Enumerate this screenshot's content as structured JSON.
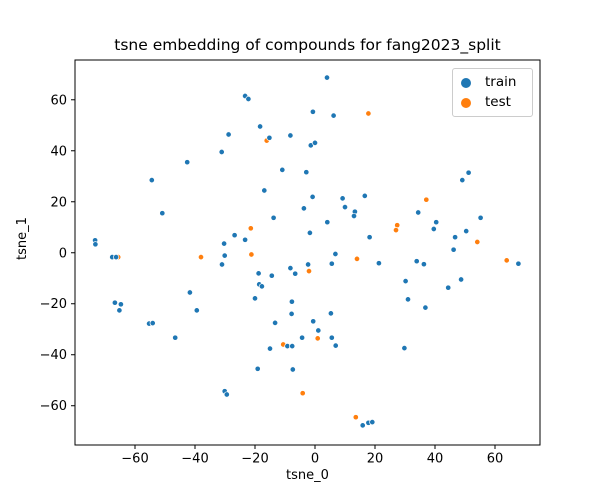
{
  "figure": {
    "title": "tsne embedding of compounds for fang2023_split",
    "xlabel": "tsne_0",
    "ylabel": "tsne_1"
  },
  "legend": {
    "items": [
      {
        "label": "train",
        "color": "#1f77b4"
      },
      {
        "label": "test",
        "color": "#ff7f0e"
      }
    ]
  },
  "chart_data": {
    "type": "scatter",
    "title": "tsne embedding of compounds for fang2023_split",
    "xlabel": "tsne_0",
    "ylabel": "tsne_1",
    "xlim": [
      -80,
      75
    ],
    "ylim": [
      -75.4,
      75.6
    ],
    "grid": false,
    "legend_position": "upper right",
    "x_tick_values": [
      -60,
      -40,
      -20,
      0,
      20,
      40,
      60
    ],
    "x_tick_labels": [
      "−60",
      "−40",
      "−20",
      "0",
      "20",
      "40",
      "60"
    ],
    "y_tick_values": [
      -60,
      -40,
      -20,
      0,
      20,
      40,
      60
    ],
    "y_tick_labels": [
      "−60",
      "−40",
      "−20",
      "0",
      "20",
      "40",
      "60"
    ],
    "marker": {
      "radius": 2.7,
      "edge_color": "#ffffff",
      "edge_width": 0.7
    },
    "series": [
      {
        "name": "train",
        "color": "#1f77b4",
        "points": [
          [
            -31.1,
            39.5
          ],
          [
            -42.6,
            35.5
          ],
          [
            -54.4,
            28.5
          ],
          [
            -28.8,
            46.4
          ],
          [
            4.0,
            68.7
          ],
          [
            -23.3,
            61.5
          ],
          [
            -22.2,
            60.3
          ],
          [
            -0.7,
            55.3
          ],
          [
            6.2,
            53.8
          ],
          [
            -18.3,
            49.5
          ],
          [
            -15.2,
            45.1
          ],
          [
            -8.2,
            46.0
          ],
          [
            -1.4,
            42.1
          ],
          [
            0.0,
            43.1
          ],
          [
            -10.9,
            32.5
          ],
          [
            -2.9,
            31.6
          ],
          [
            -16.9,
            24.4
          ],
          [
            -0.8,
            21.9
          ],
          [
            9.2,
            21.3
          ],
          [
            16.6,
            22.3
          ],
          [
            -3.7,
            17.4
          ],
          [
            10.0,
            17.9
          ],
          [
            13.3,
            16.1
          ],
          [
            13.0,
            14.4
          ],
          [
            -13.8,
            13.7
          ],
          [
            4.1,
            12.0
          ],
          [
            -26.8,
            6.9
          ],
          [
            -23.3,
            5.1
          ],
          [
            -1.7,
            7.8
          ],
          [
            18.2,
            6.1
          ],
          [
            6.8,
            -0.5
          ],
          [
            5.6,
            -4.3
          ],
          [
            21.3,
            -4.1
          ],
          [
            -2.3,
            -4.6
          ],
          [
            -8.2,
            -6.0
          ],
          [
            -6.6,
            -8.2
          ],
          [
            -18.8,
            -8.1
          ],
          [
            -14.4,
            -9.0
          ],
          [
            -18.6,
            -12.4
          ],
          [
            -17.7,
            -13.2
          ],
          [
            -20.0,
            -17.9
          ],
          [
            -7.7,
            -19.2
          ],
          [
            -7.8,
            -24.0
          ],
          [
            5.3,
            -23.8
          ],
          [
            -50.9,
            15.5
          ],
          [
            -73.3,
            4.9
          ],
          [
            -73.2,
            3.3
          ],
          [
            -67.6,
            -1.7
          ],
          [
            -66.3,
            -1.7
          ],
          [
            -30.3,
            3.6
          ],
          [
            -30.1,
            -1.1
          ],
          [
            -31.0,
            -4.6
          ],
          [
            -41.7,
            -15.6
          ],
          [
            -39.4,
            -22.6
          ],
          [
            -66.7,
            -19.6
          ],
          [
            -64.7,
            -20.2
          ],
          [
            -65.2,
            -22.6
          ],
          [
            51.2,
            31.4
          ],
          [
            49.1,
            28.5
          ],
          [
            34.4,
            15.8
          ],
          [
            40.4,
            12.0
          ],
          [
            39.6,
            9.3
          ],
          [
            55.2,
            13.7
          ],
          [
            50.4,
            8.5
          ],
          [
            46.7,
            6.1
          ],
          [
            46.2,
            1.2
          ],
          [
            33.9,
            -3.3
          ],
          [
            36.3,
            -4.5
          ],
          [
            67.8,
            -4.3
          ],
          [
            30.2,
            -11.1
          ],
          [
            48.7,
            -10.5
          ],
          [
            44.4,
            -13.7
          ],
          [
            31.0,
            -18.3
          ],
          [
            36.8,
            -21.5
          ],
          [
            -55.3,
            -27.8
          ],
          [
            -54.1,
            -27.6
          ],
          [
            -46.6,
            -33.3
          ],
          [
            -30.1,
            -54.3
          ],
          [
            -29.4,
            -55.6
          ],
          [
            -13.3,
            -27.5
          ],
          [
            -0.6,
            -26.9
          ],
          [
            1.1,
            -30.5
          ],
          [
            -4.3,
            -33.3
          ],
          [
            5.6,
            -33.3
          ],
          [
            6.9,
            -36.4
          ],
          [
            -9.2,
            -36.6
          ],
          [
            -7.6,
            -36.6
          ],
          [
            -15.0,
            -37.6
          ],
          [
            -19.1,
            -45.5
          ],
          [
            -7.4,
            -45.8
          ],
          [
            15.9,
            -67.7
          ],
          [
            17.8,
            -66.7
          ],
          [
            19.1,
            -66.4
          ],
          [
            29.8,
            -37.4
          ]
        ]
      },
      {
        "name": "test",
        "color": "#ff7f0e",
        "points": [
          [
            17.8,
            54.6
          ],
          [
            -16.1,
            44.0
          ],
          [
            -21.4,
            9.6
          ],
          [
            -21.2,
            -0.7
          ],
          [
            -2.0,
            -7.2
          ],
          [
            14.0,
            -2.4
          ],
          [
            -38.0,
            -1.7
          ],
          [
            -65.6,
            -1.7
          ],
          [
            37.1,
            20.8
          ],
          [
            27.4,
            10.8
          ],
          [
            27.0,
            8.9
          ],
          [
            54.1,
            4.2
          ],
          [
            63.9,
            -3.0
          ],
          [
            0.9,
            -33.6
          ],
          [
            -10.6,
            -36.0
          ],
          [
            -4.1,
            -55.1
          ],
          [
            13.6,
            -64.5
          ]
        ]
      }
    ]
  }
}
